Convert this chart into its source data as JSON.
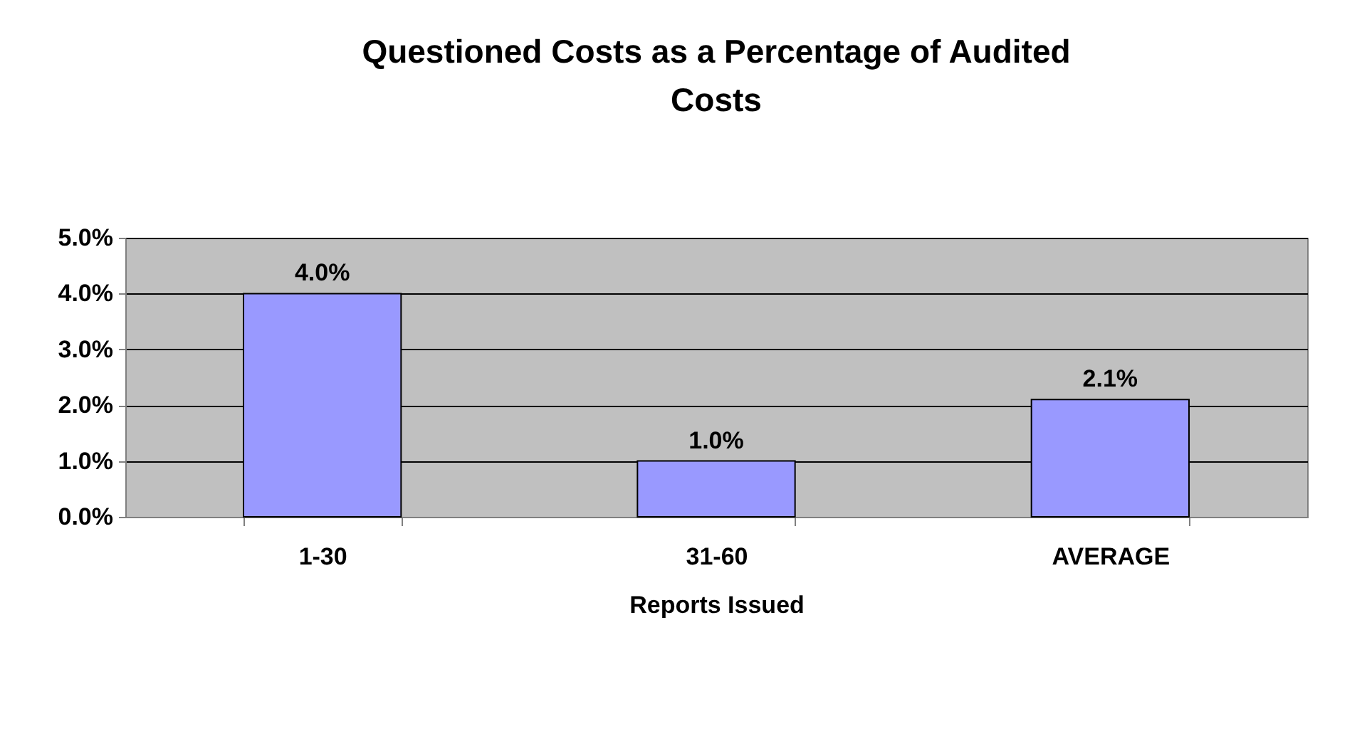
{
  "chart_data": {
    "type": "bar",
    "title": "Questioned Costs as a Percentage of Audited Costs",
    "xlabel": "Reports Issued",
    "categories": [
      "1-30",
      "31-60",
      "AVERAGE"
    ],
    "values": [
      4.0,
      1.0,
      2.1
    ],
    "color": "#9999ff",
    "value_labels": [
      "4.0%",
      "1.0%",
      "2.1%"
    ],
    "ylim": [
      0,
      5
    ],
    "yticks": [
      {
        "value": 0,
        "label": "0.0%"
      },
      {
        "value": 1,
        "label": "1.0%"
      },
      {
        "value": 2,
        "label": "2.0%"
      },
      {
        "value": 3,
        "label": "3.0%"
      },
      {
        "value": 4,
        "label": "4.0%"
      },
      {
        "value": 5,
        "label": "5.0%"
      }
    ],
    "grid": "y"
  }
}
